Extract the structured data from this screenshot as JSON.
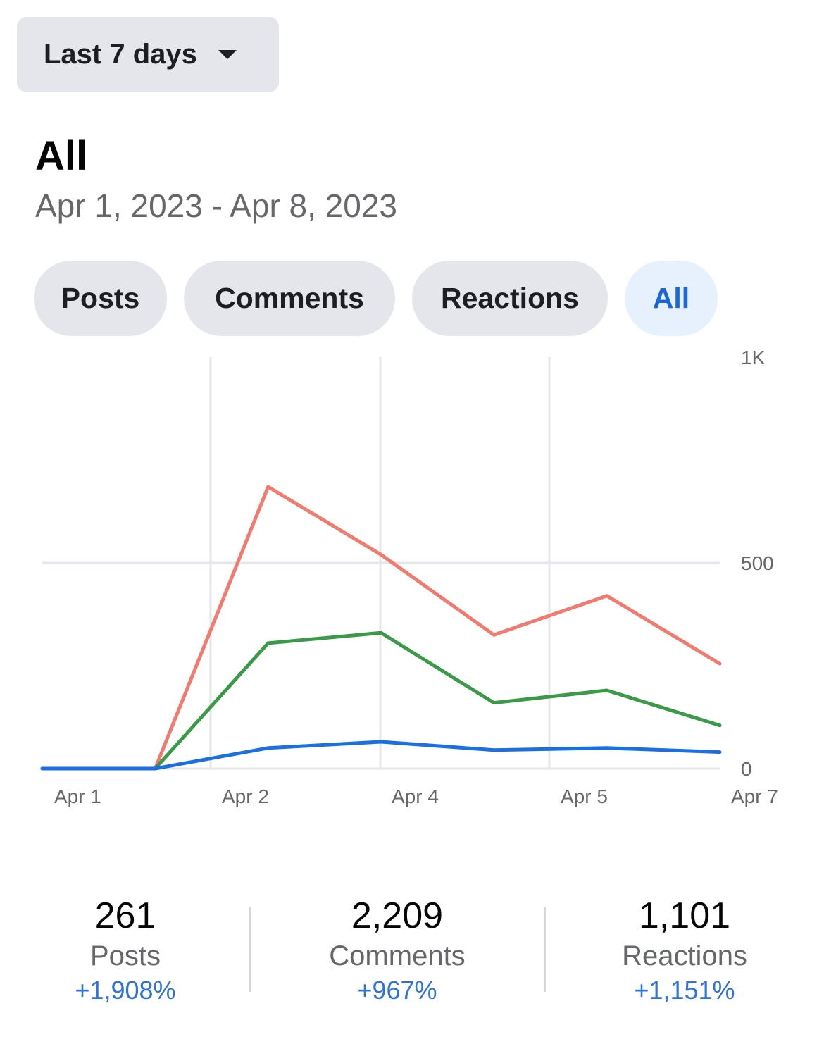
{
  "range_dropdown": {
    "label": "Last 7 days"
  },
  "header": {
    "title": "All",
    "date_range": "Apr 1, 2023 - Apr 8, 2023"
  },
  "filter_tabs": [
    {
      "label": "Posts",
      "active": false
    },
    {
      "label": "Comments",
      "active": false
    },
    {
      "label": "Reactions",
      "active": false
    },
    {
      "label": "All",
      "active": true
    }
  ],
  "colors": {
    "accent": "#1b68d6",
    "grid": "#e4e6eb",
    "axis_text": "#65676b"
  },
  "chart_data": {
    "type": "line",
    "x": [
      0,
      1,
      2,
      3,
      4,
      5,
      6
    ],
    "x_tick_labels": [
      "Apr 1",
      "Apr 2",
      "Apr 4",
      "Apr 5",
      "Apr 7"
    ],
    "y_tick_labels": [
      "1K",
      "500",
      "0"
    ],
    "ylim": [
      0,
      1000
    ],
    "grid": true,
    "series": [
      {
        "color": "#f07b6e",
        "values": [
          0,
          0,
          685,
          520,
          325,
          420,
          255
        ]
      },
      {
        "color": "#3a9a48",
        "values": [
          0,
          0,
          305,
          330,
          160,
          190,
          105
        ]
      },
      {
        "color": "#1a6fe3",
        "values": [
          0,
          0,
          50,
          65,
          45,
          50,
          40
        ]
      }
    ]
  },
  "stats": [
    {
      "value": "261",
      "label": "Posts",
      "change": "+1,908%"
    },
    {
      "value": "2,209",
      "label": "Comments",
      "change": "+967%"
    },
    {
      "value": "1,101",
      "label": "Reactions",
      "change": "+1,151%"
    }
  ]
}
